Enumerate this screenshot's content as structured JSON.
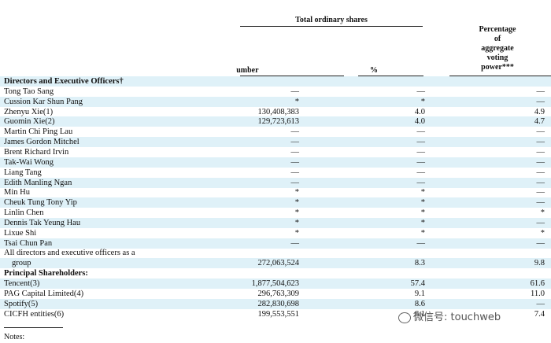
{
  "header": {
    "group_title": "Total ordinary shares",
    "col_number": "Number",
    "col_percent": "%",
    "col_voting": [
      "Percentage",
      "of",
      "aggregate",
      "voting",
      "power***"
    ]
  },
  "rows": [
    {
      "name": "Directors and Executive Officers†",
      "number": "",
      "percent": "",
      "voting": "",
      "section": true
    },
    {
      "name": "Tong Tao Sang",
      "number": "—",
      "percent": "—",
      "voting": "—"
    },
    {
      "name": "Cussion Kar Shun Pang",
      "number": "*",
      "percent": "*",
      "voting": "—"
    },
    {
      "name": "Zhenyu Xie(1)",
      "number": "130,408,383",
      "percent": "4.0",
      "voting": "4.9"
    },
    {
      "name": "Guomin Xie(2)",
      "number": "129,723,613",
      "percent": "4.0",
      "voting": "4.7"
    },
    {
      "name": "Martin Chi Ping Lau",
      "number": "—",
      "percent": "—",
      "voting": "—"
    },
    {
      "name": "James Gordon Mitchel",
      "number": "—",
      "percent": "—",
      "voting": "—"
    },
    {
      "name": "Brent Richard Irvin",
      "number": "—",
      "percent": "—",
      "voting": "—"
    },
    {
      "name": "Tak-Wai Wong",
      "number": "—",
      "percent": "—",
      "voting": "—"
    },
    {
      "name": "Liang Tang",
      "number": "—",
      "percent": "—",
      "voting": "—"
    },
    {
      "name": "Edith Manling Ngan",
      "number": "—",
      "percent": "—",
      "voting": "—"
    },
    {
      "name": "Min Hu",
      "number": "*",
      "percent": "*",
      "voting": "—"
    },
    {
      "name": "Cheuk Tung Tony Yip",
      "number": "*",
      "percent": "*",
      "voting": "—"
    },
    {
      "name": "Linlin Chen",
      "number": "*",
      "percent": "*",
      "voting": "*"
    },
    {
      "name": "Dennis Tak Yeung Hau",
      "number": "*",
      "percent": "*",
      "voting": "—"
    },
    {
      "name": "Lixue Shi",
      "number": "*",
      "percent": "*",
      "voting": "*"
    },
    {
      "name": "Tsai Chun Pan",
      "number": "—",
      "percent": "—",
      "voting": "—"
    },
    {
      "name": "All directors and executive officers as a",
      "number": "",
      "percent": "",
      "voting": ""
    },
    {
      "name": "group",
      "number": "272,063,524",
      "percent": "8.3",
      "voting": "9.8",
      "indent": true
    },
    {
      "name": "Principal Shareholders:",
      "number": "",
      "percent": "",
      "voting": "",
      "section": true
    },
    {
      "name": "Tencent(3)",
      "number": "1,877,504,623",
      "percent": "57.4",
      "voting": "61.6"
    },
    {
      "name": "PAG Capital Limited(4)",
      "number": "296,763,309",
      "percent": "9.1",
      "voting": "11.0"
    },
    {
      "name": "Spotify(5)",
      "number": "282,830,698",
      "percent": "8.6",
      "voting": "—"
    },
    {
      "name": "CICFH entities(6)",
      "number": "199,553,551",
      "percent": "6.1",
      "voting": "7.4"
    }
  ],
  "notes_label": "Notes:",
  "watermark": "微信号: touchweb"
}
